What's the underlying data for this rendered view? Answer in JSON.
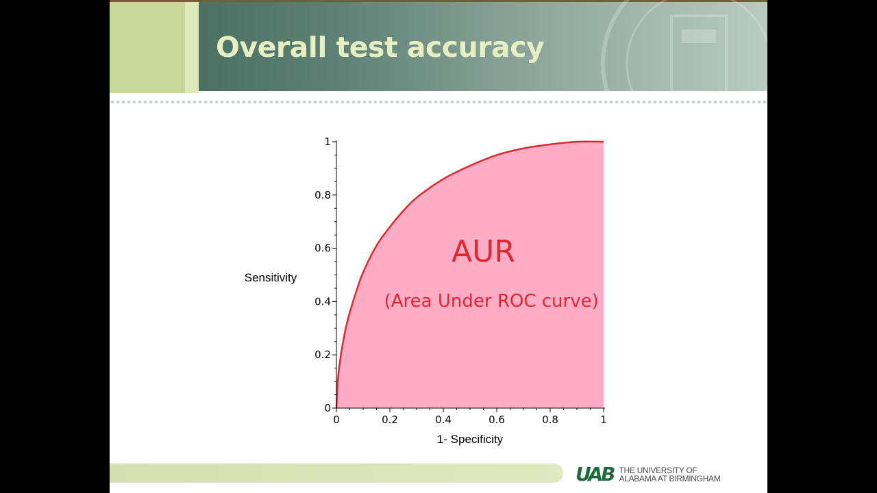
{
  "slide": {
    "title": "Overall test accuracy",
    "logo": {
      "mark": "UAB",
      "line1": "THE UNIVERSITY OF",
      "line2": "ALABAMA AT BIRMINGHAM",
      "color": "#1f6b3d"
    }
  },
  "chart_data": {
    "type": "area",
    "title": "",
    "xlabel": "1- Specificity",
    "ylabel": "Sensitivity",
    "xlim": [
      0,
      1
    ],
    "ylim": [
      0,
      1
    ],
    "grid": false,
    "x_ticks": [
      "0",
      "0.2",
      "0.4",
      "0.6",
      "0.8",
      "1"
    ],
    "y_ticks": [
      "0",
      "0.2",
      "0.4",
      "0.6",
      "0.8",
      "1"
    ],
    "series": [
      {
        "x": [
          0,
          0.005,
          0.01,
          0.02,
          0.035,
          0.05,
          0.075,
          0.1,
          0.15,
          0.2,
          0.25,
          0.3,
          0.4,
          0.5,
          0.6,
          0.7,
          0.8,
          0.9,
          1.0
        ],
        "y": [
          0,
          0.1,
          0.15,
          0.22,
          0.3,
          0.36,
          0.44,
          0.51,
          0.61,
          0.68,
          0.74,
          0.79,
          0.86,
          0.91,
          0.95,
          0.975,
          0.99,
          1.0,
          1.0
        ],
        "line_color": "#e0262f",
        "fill_color": "#ffadc6"
      }
    ],
    "annotations": [
      {
        "text": "AUR",
        "x": 0.55,
        "y": 0.55,
        "color": "#e0262f"
      },
      {
        "text": "(Area Under ROC curve)",
        "x": 0.58,
        "y": 0.38,
        "color": "#e0262f"
      }
    ]
  }
}
